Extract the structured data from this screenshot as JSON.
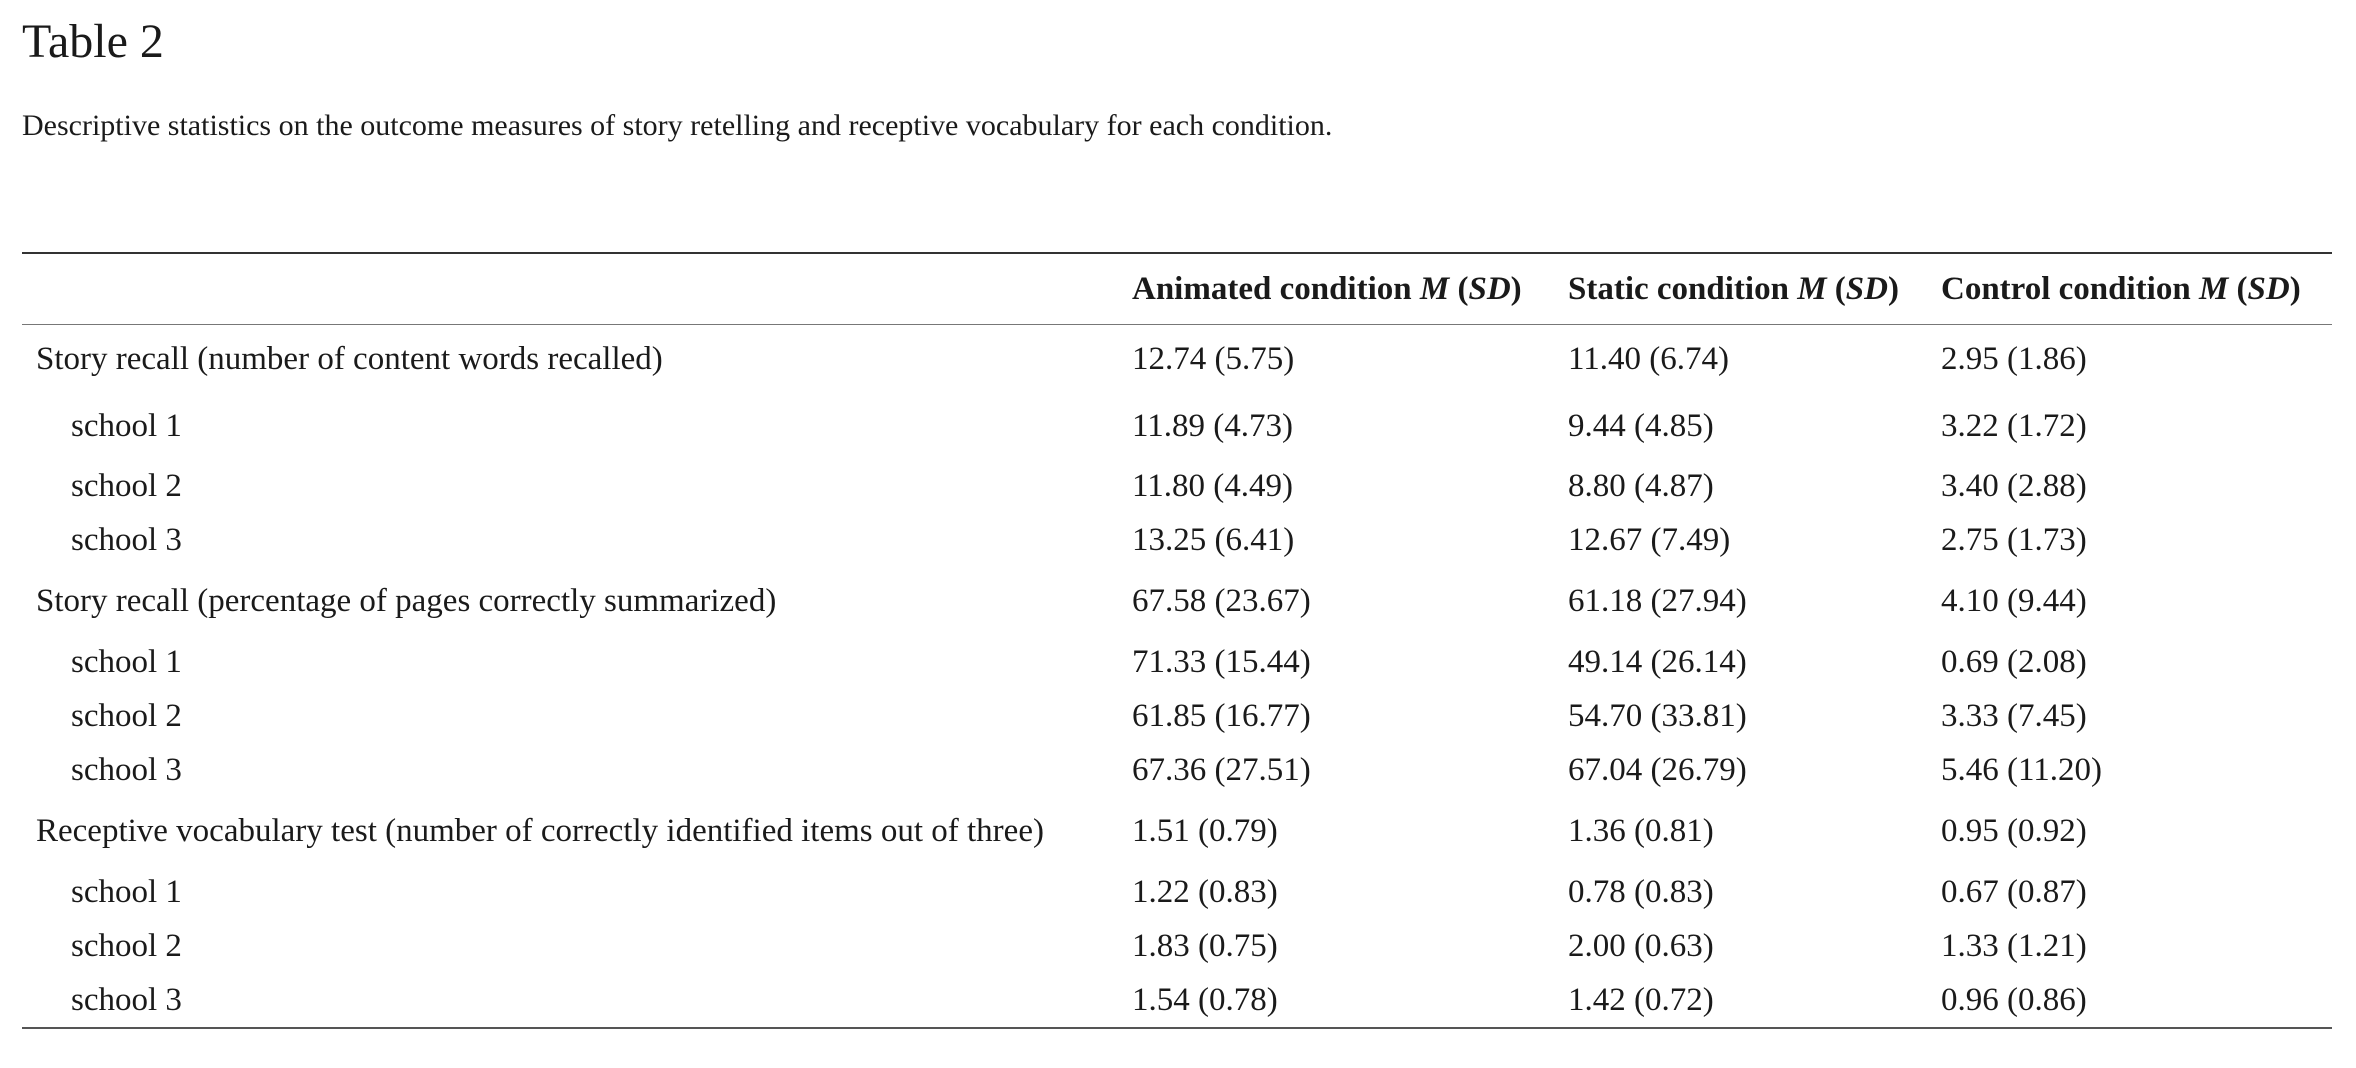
{
  "title": "Table 2",
  "caption": "Descriptive statistics on the outcome measures of story retelling and receptive vocabulary for each condition.",
  "columns": [
    {
      "name": "Animated condition",
      "stat_m": "M",
      "stat_sd": "SD"
    },
    {
      "name": "Static condition",
      "stat_m": "M",
      "stat_sd": "SD"
    },
    {
      "name": "Control condition",
      "stat_m": "M",
      "stat_sd": "SD"
    }
  ],
  "rows": [
    {
      "label": "Story recall (number of content words recalled)",
      "values": [
        "12.74 (5.75)",
        "11.40 (6.74)",
        "2.95 (1.86)"
      ]
    },
    {
      "label": "school 1",
      "values": [
        "11.89 (4.73)",
        "9.44 (4.85)",
        "3.22 (1.72)"
      ]
    },
    {
      "label": "school 2",
      "values": [
        "11.80 (4.49)",
        "8.80 (4.87)",
        "3.40 (2.88)"
      ]
    },
    {
      "label": "school 3",
      "values": [
        "13.25 (6.41)",
        "12.67 (7.49)",
        "2.75 (1.73)"
      ]
    },
    {
      "label": "Story recall (percentage of pages correctly summarized)",
      "values": [
        "67.58 (23.67)",
        "61.18 (27.94)",
        "4.10 (9.44)"
      ]
    },
    {
      "label": "school 1",
      "values": [
        "71.33 (15.44)",
        "49.14 (26.14)",
        "0.69 (2.08)"
      ]
    },
    {
      "label": "school 2",
      "values": [
        "61.85 (16.77)",
        "54.70 (33.81)",
        "3.33 (7.45)"
      ]
    },
    {
      "label": "school 3",
      "values": [
        "67.36 (27.51)",
        "67.04 (26.79)",
        "5.46 (11.20)"
      ]
    },
    {
      "label": "Receptive vocabulary test (number of correctly identified items out of three)",
      "values": [
        "1.51 (0.79)",
        "1.36 (0.81)",
        "0.95 (0.92)"
      ]
    },
    {
      "label": "school 1",
      "values": [
        "1.22 (0.83)",
        "0.78 (0.83)",
        "0.67 (0.87)"
      ]
    },
    {
      "label": "school 2",
      "values": [
        "1.83 (0.75)",
        "2.00 (0.63)",
        "1.33 (1.21)"
      ]
    },
    {
      "label": "school 3",
      "values": [
        "1.54 (0.78)",
        "1.42 (0.72)",
        "0.96 (0.86)"
      ]
    }
  ]
}
